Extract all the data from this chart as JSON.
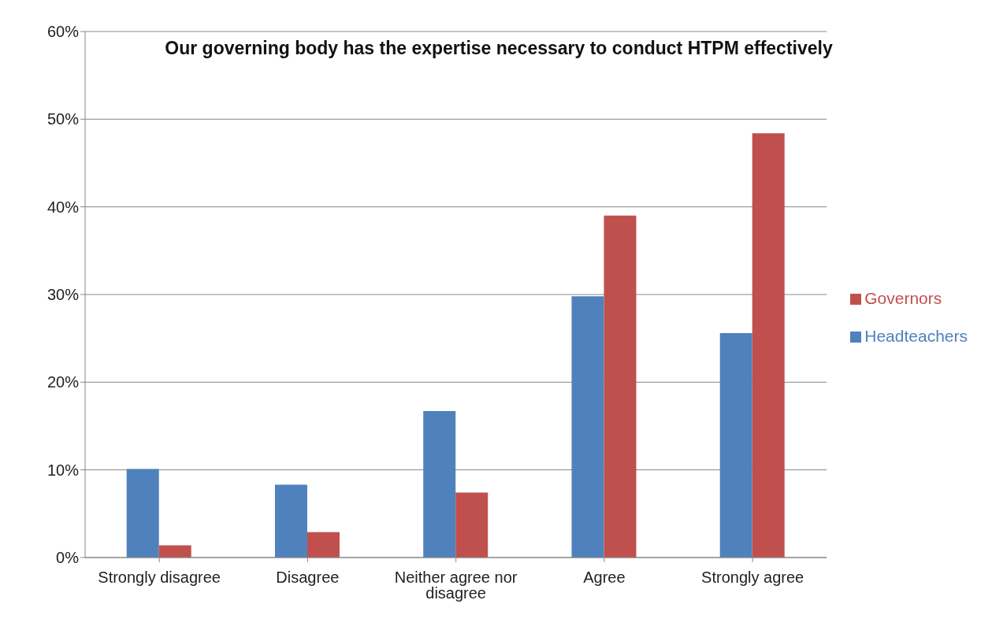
{
  "chart_data": {
    "type": "bar",
    "title": "Our governing body has the expertise necessary to conduct HTPM effectively",
    "categories": [
      "Strongly disagree",
      "Disagree",
      "Neither agree nor disagree",
      "Agree",
      "Strongly agree"
    ],
    "series": [
      {
        "name": "Headteachers",
        "color": "#4f81bd",
        "values": [
          10.1,
          8.3,
          16.7,
          29.8,
          25.6
        ]
      },
      {
        "name": "Governors",
        "color": "#c0504d",
        "values": [
          1.4,
          2.9,
          7.4,
          39.0,
          48.4
        ]
      }
    ],
    "ylim": [
      0,
      60
    ],
    "yticks": [
      {
        "value": 0,
        "label": "0%"
      },
      {
        "value": 10,
        "label": "10%"
      },
      {
        "value": 20,
        "label": "20%"
      },
      {
        "value": 30,
        "label": "30%"
      },
      {
        "value": 40,
        "label": "40%"
      },
      {
        "value": 50,
        "label": "50%"
      },
      {
        "value": 60,
        "label": "60%"
      }
    ],
    "grid": "y",
    "legend": "right"
  }
}
